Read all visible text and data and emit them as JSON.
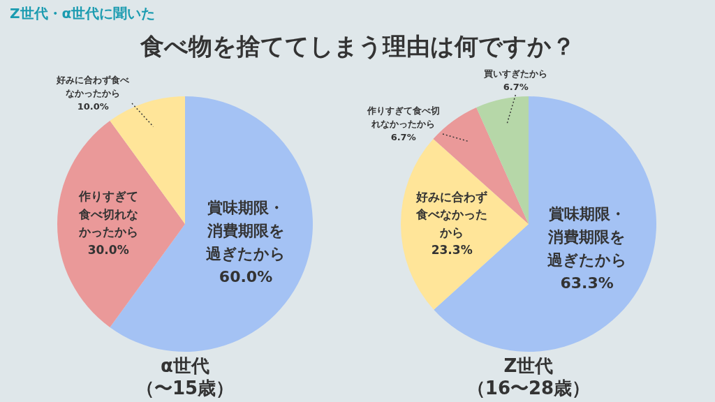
{
  "chart_data": [
    {
      "type": "other",
      "title": "食べ物を捨ててしまう理由は何ですか？",
      "subtitle": "Z世代・α世代に聞いた"
    },
    {
      "type": "pie",
      "title": "α世代",
      "subtitle": "（〜15歳）",
      "categories": [
        "賞味期限・消費期限を過ぎたから",
        "作りすぎて食べ切れなかったから",
        "好みに合わず食べなかったから"
      ],
      "values": [
        60.0,
        30.0,
        10.0
      ],
      "value_labels": [
        "60.0%",
        "30.0%",
        "10.0%"
      ],
      "colors": [
        "#a4c2f4",
        "#ea9999",
        "#ffe599"
      ],
      "legend": false
    },
    {
      "type": "pie",
      "title": "Z世代",
      "subtitle": "（16〜28歳）",
      "categories": [
        "賞味期限・消費期限を過ぎたから",
        "好みに合わず食べなかったから",
        "作りすぎて食べ切れなかったから",
        "買いすぎたから"
      ],
      "values": [
        63.3,
        23.3,
        6.7,
        6.7
      ],
      "value_labels": [
        "63.3%",
        "23.3%",
        "6.7%",
        "6.7%"
      ],
      "colors": [
        "#a4c2f4",
        "#ffe599",
        "#ea9999",
        "#b6d7a8"
      ],
      "legend": false
    }
  ]
}
